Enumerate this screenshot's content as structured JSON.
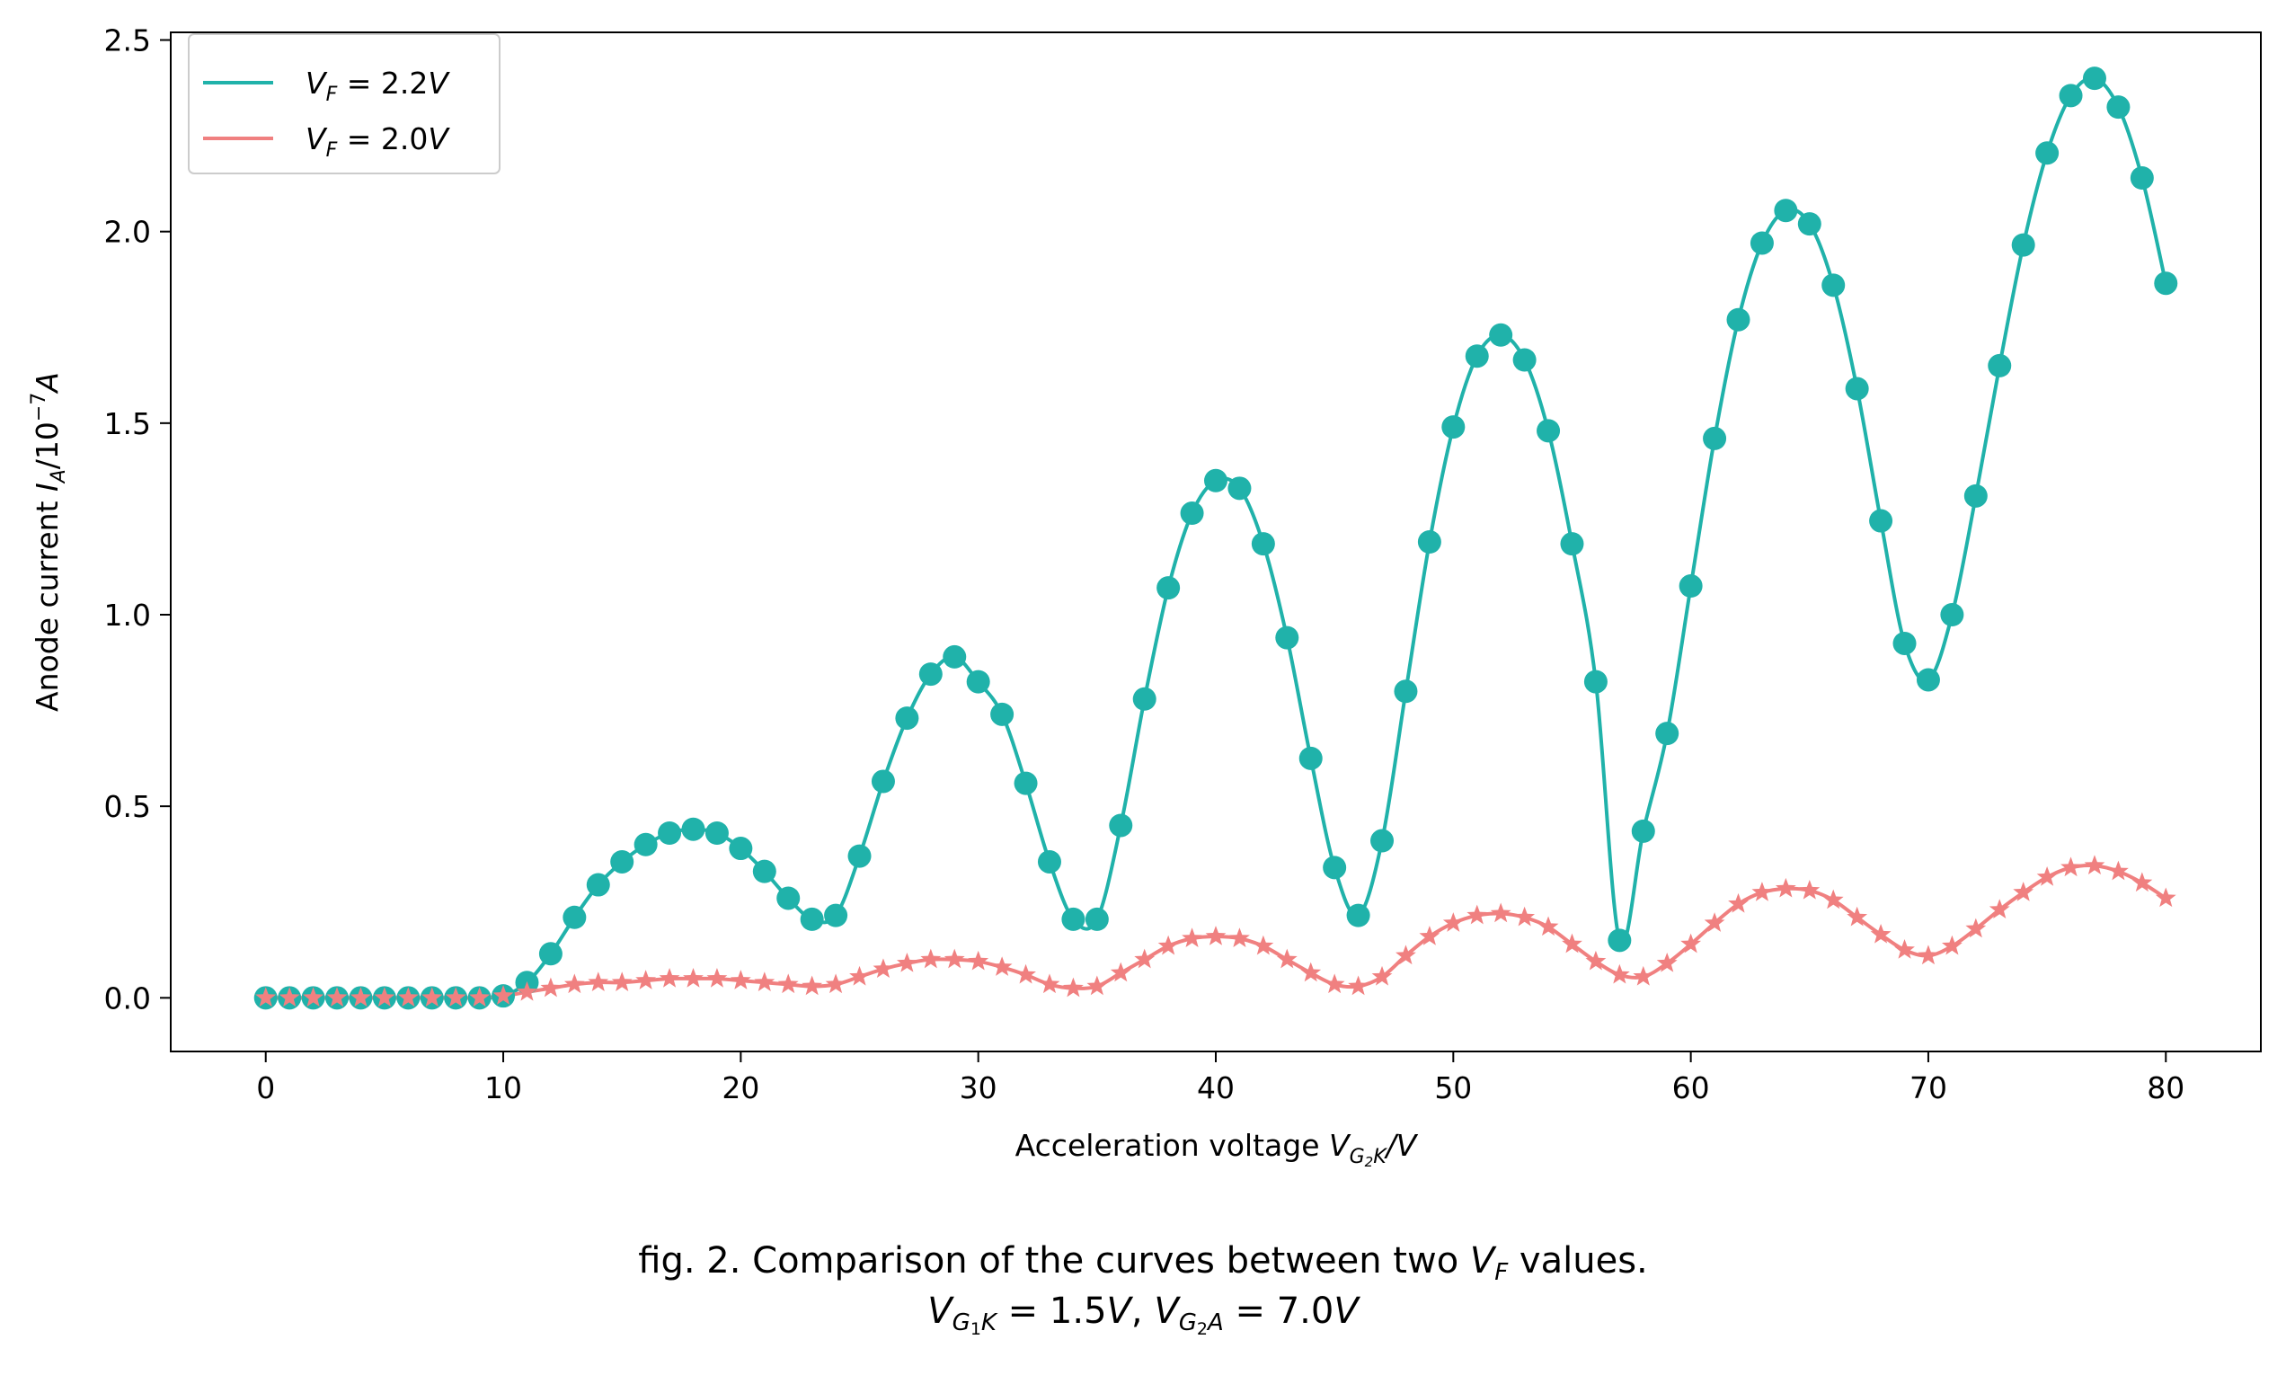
{
  "chart_data": {
    "type": "line",
    "x_axis": {
      "label_text": "Acceleration voltage ",
      "label_var": "V",
      "label_sub": "G",
      "label_subsub": "2",
      "label_sub2": "K",
      "label_suffix": "/V",
      "range": [
        -4,
        84
      ],
      "ticks": [
        0,
        10,
        20,
        30,
        40,
        50,
        60,
        70,
        80
      ]
    },
    "y_axis": {
      "label_text": "Anode current ",
      "label_var": "I",
      "label_sub": "A",
      "label_suffix": "/10",
      "label_sup": "−7",
      "label_unit": "A",
      "range": [
        -0.14,
        2.52
      ],
      "ticks": [
        "0.0",
        "0.5",
        "1.0",
        "1.5",
        "2.0",
        "2.5"
      ]
    },
    "legend": {
      "position": "top-left",
      "entries": [
        {
          "var": "V",
          "sub": "F",
          "text": " = 2.2",
          "unit": "V",
          "color": "#20b2aa"
        },
        {
          "var": "V",
          "sub": "F",
          "text": " = 2.0",
          "unit": "V",
          "color": "#f08080"
        }
      ]
    },
    "x": [
      0,
      1,
      2,
      3,
      4,
      5,
      6,
      7,
      8,
      9,
      10,
      11,
      12,
      13,
      14,
      15,
      16,
      17,
      18,
      19,
      20,
      21,
      22,
      23,
      24,
      25,
      26,
      27,
      28,
      29,
      30,
      31,
      32,
      33,
      34,
      35,
      36,
      37,
      38,
      39,
      40,
      41,
      42,
      43,
      44,
      45,
      46,
      47,
      48,
      49,
      50,
      51,
      52,
      53,
      54,
      55,
      56,
      57,
      58,
      59,
      60,
      61,
      62,
      63,
      64,
      65,
      66,
      67,
      68,
      69,
      70,
      71,
      72,
      73,
      74,
      75,
      76,
      77,
      78,
      79,
      80
    ],
    "series": [
      {
        "marker": "circle",
        "color": "#20b2aa",
        "values": [
          0,
          0,
          0,
          0,
          0,
          0,
          0,
          0,
          0,
          0,
          0.005,
          0.04,
          0.115,
          0.21,
          0.295,
          0.355,
          0.4,
          0.43,
          0.44,
          0.43,
          0.39,
          0.33,
          0.26,
          0.205,
          0.215,
          0.37,
          0.565,
          0.73,
          0.845,
          0.89,
          0.825,
          0.74,
          0.56,
          0.355,
          0.205,
          0.205,
          0.45,
          0.78,
          1.07,
          1.265,
          1.35,
          1.33,
          1.185,
          0.94,
          0.625,
          0.34,
          0.215,
          0.41,
          0.8,
          1.19,
          1.49,
          1.675,
          1.73,
          1.665,
          1.48,
          1.185,
          0.825,
          0.15,
          0.435,
          0.69,
          1.075,
          1.46,
          1.77,
          1.97,
          2.055,
          2.02,
          1.86,
          1.59,
          1.245,
          0.925,
          0.83,
          1.0,
          1.31,
          1.65,
          1.965,
          2.205,
          2.355,
          2.4,
          2.325,
          2.14,
          1.865
        ]
      },
      {
        "marker": "star",
        "color": "#f08080",
        "values": [
          0,
          0,
          0,
          0,
          0,
          0,
          0,
          0,
          0,
          0,
          0.005,
          0.015,
          0.025,
          0.035,
          0.04,
          0.04,
          0.045,
          0.05,
          0.05,
          0.05,
          0.045,
          0.04,
          0.035,
          0.03,
          0.035,
          0.055,
          0.075,
          0.09,
          0.1,
          0.1,
          0.095,
          0.08,
          0.06,
          0.035,
          0.025,
          0.03,
          0.065,
          0.1,
          0.135,
          0.155,
          0.16,
          0.155,
          0.135,
          0.1,
          0.065,
          0.035,
          0.03,
          0.055,
          0.11,
          0.16,
          0.195,
          0.215,
          0.22,
          0.21,
          0.185,
          0.14,
          0.095,
          0.06,
          0.055,
          0.09,
          0.14,
          0.195,
          0.245,
          0.275,
          0.285,
          0.28,
          0.255,
          0.21,
          0.165,
          0.125,
          0.11,
          0.135,
          0.18,
          0.23,
          0.275,
          0.315,
          0.34,
          0.345,
          0.33,
          0.3,
          0.26
        ]
      }
    ],
    "caption": {
      "line1_prefix": "fig. 2. Comparison of the curves between two ",
      "line1_var": "V",
      "line1_sub": "F",
      "line1_suffix": " values.",
      "line2_a_var": "V",
      "line2_a_sub": "G",
      "line2_a_subsub": "1",
      "line2_a_sub2": "K",
      "line2_a_val": " = 1.5",
      "line2_a_unit": "V",
      "line2_sep": ", ",
      "line2_b_var": "V",
      "line2_b_sub": "G",
      "line2_b_subsub": "2",
      "line2_b_sub2": "A",
      "line2_b_val": " = 7.0",
      "line2_b_unit": "V"
    }
  }
}
